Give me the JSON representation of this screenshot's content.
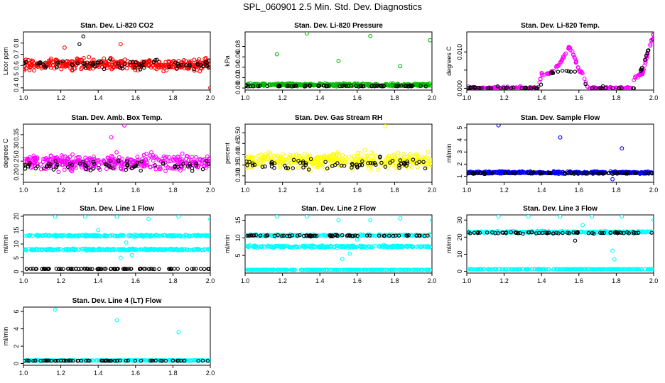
{
  "title": "SPL_060901  2.5 Min. Std. Dev. Diagnostics",
  "colors": {
    "black": "#000000",
    "red": "#ff0000",
    "green": "#00bb00",
    "magenta": "#ff00ff",
    "yellow": "#ffff00",
    "blue": "#0000ff",
    "cyan": "#00ffff"
  },
  "chart_data": [
    {
      "type": "scatter",
      "title": "Stan. Dev. Li-820 CO2",
      "ylabel": "Licor ppm",
      "xlim": [
        1.0,
        2.0
      ],
      "ylim": [
        0.38,
        0.9
      ],
      "xticks": [
        1.0,
        1.2,
        1.4,
        1.6,
        1.8,
        2.0
      ],
      "xtick_labels": [
        "1.0",
        "1.2",
        "1.4",
        "1.6",
        "1.8",
        "2.0"
      ],
      "yticks": [
        0.4,
        0.5,
        0.6,
        0.7,
        0.8
      ],
      "ytick_labels": [
        "0.4",
        "0.5",
        "0.6",
        "0.7",
        "0.8"
      ],
      "series": [
        {
          "color": "red",
          "kind": "band",
          "center": 0.61,
          "spread": 0.08,
          "n": 380,
          "outliers": [
            [
              1.52,
              0.79
            ],
            [
              2.0,
              0.4
            ],
            [
              1.22,
              0.76
            ]
          ]
        },
        {
          "color": "black",
          "kind": "band",
          "center": 0.61,
          "spread": 0.07,
          "n": 70,
          "outliers": [
            [
              1.32,
              0.86
            ],
            [
              1.3,
              0.79
            ]
          ]
        }
      ]
    },
    {
      "type": "scatter",
      "title": "Stan. Dev. Li-820 Pressure",
      "ylabel": "kPa",
      "xlim": [
        1.0,
        2.0
      ],
      "ylim": [
        -0.004,
        0.108
      ],
      "xticks": [
        1.0,
        1.2,
        1.4,
        1.6,
        1.8,
        2.0
      ],
      "xtick_labels": [
        "1.0",
        "1.2",
        "1.4",
        "1.6",
        "1.8",
        "2.0"
      ],
      "yticks": [
        0.0,
        0.02,
        0.04,
        0.06,
        0.08
      ],
      "ytick_labels": [
        "0.00",
        "0.02",
        "0.04",
        "0.06",
        "0.08"
      ],
      "series": [
        {
          "color": "green",
          "kind": "band",
          "center": 0.006,
          "spread": 0.004,
          "n": 380,
          "outliers": [
            [
              1.17,
              0.065
            ],
            [
              1.33,
              0.105
            ],
            [
              1.5,
              0.052
            ],
            [
              1.67,
              0.1
            ],
            [
              1.83,
              0.042
            ],
            [
              1.99,
              0.092
            ]
          ]
        },
        {
          "color": "black",
          "kind": "band",
          "center": 0.004,
          "spread": 0.002,
          "n": 70,
          "outliers": []
        }
      ]
    },
    {
      "type": "scatter",
      "title": "Stan. Dev. Li-820 Temp.",
      "ylabel": "degrees C",
      "xlim": [
        1.0,
        2.0
      ],
      "ylim": [
        -0.0005,
        0.0155
      ],
      "xticks": [
        1.0,
        1.2,
        1.4,
        1.6,
        1.8,
        2.0
      ],
      "xtick_labels": [
        "1.0",
        "1.2",
        "1.4",
        "1.6",
        "1.8",
        "2.0"
      ],
      "yticks": [
        0.0,
        0.005,
        0.01
      ],
      "ytick_labels": [
        "0.000",
        "",
        "0.010"
      ],
      "series": [
        {
          "color": "magenta",
          "kind": "curve",
          "points": [
            [
              1.0,
              0
            ],
            [
              1.38,
              0
            ],
            [
              1.4,
              0.004
            ],
            [
              1.45,
              0.004
            ],
            [
              1.5,
              0.007
            ],
            [
              1.55,
              0.0115
            ],
            [
              1.58,
              0.008
            ],
            [
              1.6,
              0.005
            ],
            [
              1.62,
              0.004
            ],
            [
              1.65,
              0
            ],
            [
              1.88,
              0
            ],
            [
              1.9,
              0.003
            ],
            [
              1.94,
              0.004
            ],
            [
              1.97,
              0.01
            ],
            [
              2.0,
              0.015
            ]
          ],
          "n": 300,
          "outliers": []
        },
        {
          "color": "black",
          "kind": "curve",
          "points": [
            [
              1.0,
              0
            ],
            [
              1.38,
              0
            ],
            [
              1.45,
              0.004
            ],
            [
              1.52,
              0.005
            ],
            [
              1.6,
              0.004
            ],
            [
              1.65,
              0
            ],
            [
              1.9,
              0
            ],
            [
              1.96,
              0.009
            ],
            [
              2.0,
              0.014
            ]
          ],
          "n": 70,
          "outliers": []
        }
      ]
    },
    {
      "type": "scatter",
      "title": "Stan. Dev. Amb. Box Temp.",
      "ylabel": "degrees C",
      "xlim": [
        1.0,
        2.0
      ],
      "ylim": [
        0.17,
        0.39
      ],
      "xticks": [
        1.0,
        1.2,
        1.4,
        1.6,
        1.8,
        2.0
      ],
      "xtick_labels": [
        "1.0",
        "1.2",
        "1.4",
        "1.6",
        "1.8",
        "2.0"
      ],
      "yticks": [
        0.2,
        0.25,
        0.3,
        0.35
      ],
      "ytick_labels": [
        "0.20",
        "0.25",
        "0.30",
        "0.35"
      ],
      "series": [
        {
          "color": "magenta",
          "kind": "band",
          "center": 0.245,
          "spread": 0.045,
          "n": 380,
          "outliers": [
            [
              1.54,
              0.385
            ],
            [
              1.47,
              0.34
            ]
          ]
        },
        {
          "color": "black",
          "kind": "band",
          "center": 0.235,
          "spread": 0.03,
          "n": 70,
          "outliers": []
        }
      ]
    },
    {
      "type": "scatter",
      "title": "Stan. Dev. Gas Stream RH",
      "ylabel": "percent",
      "xlim": [
        1.0,
        2.0
      ],
      "ylim": [
        0.27,
        0.54
      ],
      "xticks": [
        1.0,
        1.2,
        1.4,
        1.6,
        1.8,
        2.0
      ],
      "xtick_labels": [
        "1.0",
        "1.2",
        "1.4",
        "1.6",
        "1.8",
        "2.0"
      ],
      "yticks": [
        0.3,
        0.35,
        0.4,
        0.45,
        0.5
      ],
      "ytick_labels": [
        "0.30",
        "0.35",
        "0.40",
        "0.45",
        "0.50"
      ],
      "series": [
        {
          "color": "yellow",
          "kind": "band",
          "center": 0.37,
          "spread": 0.06,
          "n": 380,
          "outliers": [
            [
              1.75,
              0.53
            ]
          ]
        },
        {
          "color": "black",
          "kind": "band",
          "center": 0.355,
          "spread": 0.04,
          "n": 70,
          "outliers": []
        }
      ]
    },
    {
      "type": "scatter",
      "title": "Stan. Dev. Sample Flow",
      "ylabel": "ml/min",
      "xlim": [
        1.0,
        2.0
      ],
      "ylim": [
        0.5,
        5.3
      ],
      "xticks": [
        1.0,
        1.2,
        1.4,
        1.6,
        1.8,
        2.0
      ],
      "xtick_labels": [
        "1.0",
        "1.2",
        "1.4",
        "1.6",
        "1.8",
        "2.0"
      ],
      "yticks": [
        1,
        2,
        3,
        4,
        5
      ],
      "ytick_labels": [
        "1",
        "2",
        "3",
        "4",
        "5"
      ],
      "series": [
        {
          "color": "blue",
          "kind": "band",
          "center": 1.3,
          "spread": 0.15,
          "n": 380,
          "outliers": [
            [
              1.17,
              5.2
            ],
            [
              1.5,
              4.2
            ],
            [
              1.83,
              3.3
            ],
            [
              1.78,
              0.75
            ]
          ]
        },
        {
          "color": "black",
          "kind": "band",
          "center": 1.25,
          "spread": 0.1,
          "n": 70,
          "outliers": []
        }
      ]
    },
    {
      "type": "scatter",
      "title": "Stan. Dev. Line 1 Flow",
      "ylabel": "ml/min",
      "xlim": [
        1.0,
        2.0
      ],
      "ylim": [
        -0.5,
        20.5
      ],
      "xticks": [
        1.0,
        1.2,
        1.4,
        1.6,
        1.8,
        2.0
      ],
      "xtick_labels": [
        "1.0",
        "1.2",
        "1.4",
        "1.6",
        "1.8",
        "2.0"
      ],
      "yticks": [
        0,
        5,
        10,
        15,
        20
      ],
      "ytick_labels": [
        "0",
        "5",
        "10",
        "15",
        "20"
      ],
      "series": [
        {
          "color": "cyan",
          "kind": "band",
          "center": 13.0,
          "spread": 0.5,
          "n": 250,
          "outliers": [
            [
              1.17,
              19.8
            ],
            [
              1.33,
              19.8
            ],
            [
              1.5,
              19.8
            ],
            [
              1.67,
              19.0
            ],
            [
              1.83,
              19.8
            ],
            [
              2.0,
              19.0
            ],
            [
              1.4,
              15.0
            ]
          ]
        },
        {
          "color": "cyan",
          "kind": "band",
          "center": 8.0,
          "spread": 0.5,
          "n": 250,
          "outliers": [
            [
              1.52,
              5.0
            ],
            [
              1.58,
              6.0
            ],
            [
              1.55,
              10.5
            ]
          ]
        },
        {
          "color": "black",
          "kind": "band",
          "center": 1.0,
          "spread": 0.15,
          "n": 90,
          "outliers": []
        }
      ]
    },
    {
      "type": "scatter",
      "title": "Stan. Dev. Line 2 Flow",
      "ylabel": "ml/min",
      "xlim": [
        1.0,
        2.0
      ],
      "ylim": [
        0.0,
        16.5
      ],
      "xticks": [
        1.0,
        1.2,
        1.4,
        1.6,
        1.8,
        2.0
      ],
      "xtick_labels": [
        "1.0",
        "1.2",
        "1.4",
        "1.6",
        "1.8",
        "2.0"
      ],
      "yticks": [
        5,
        10,
        15
      ],
      "ytick_labels": [
        "5",
        "10",
        "15"
      ],
      "series": [
        {
          "color": "cyan",
          "kind": "band",
          "center": 10.7,
          "spread": 0.4,
          "n": 250,
          "outliers": [
            [
              1.17,
              16
            ],
            [
              1.33,
              16
            ],
            [
              1.5,
              15
            ],
            [
              1.67,
              15
            ],
            [
              1.83,
              15.5
            ],
            [
              2.0,
              15
            ]
          ]
        },
        {
          "color": "cyan",
          "kind": "band",
          "center": 7.5,
          "spread": 0.5,
          "n": 250,
          "outliers": [
            [
              1.52,
              4.0
            ],
            [
              1.56,
              5.5
            ],
            [
              1.6,
              9.5
            ]
          ]
        },
        {
          "color": "cyan",
          "kind": "band",
          "center": 0.9,
          "spread": 0.1,
          "n": 250,
          "outliers": []
        },
        {
          "color": "black",
          "kind": "band",
          "center": 10.6,
          "spread": 0.3,
          "n": 70,
          "outliers": []
        }
      ]
    },
    {
      "type": "scatter",
      "title": "Stan. Dev. Line 3 Flow",
      "ylabel": "ml/min",
      "xlim": [
        1.0,
        2.0
      ],
      "ylim": [
        -1,
        33
      ],
      "xticks": [
        1.0,
        1.2,
        1.4,
        1.6,
        1.8,
        2.0
      ],
      "xtick_labels": [
        "1.0",
        "1.2",
        "1.4",
        "1.6",
        "1.8",
        "2.0"
      ],
      "yticks": [
        0,
        10,
        20,
        30
      ],
      "ytick_labels": [
        "0",
        "10",
        "20",
        "30"
      ],
      "series": [
        {
          "color": "cyan",
          "kind": "band",
          "center": 23.0,
          "spread": 0.8,
          "n": 300,
          "outliers": [
            [
              1.17,
              32
            ],
            [
              1.33,
              32
            ],
            [
              1.5,
              32
            ],
            [
              1.67,
              32
            ],
            [
              1.83,
              32
            ],
            [
              2.0,
              30
            ],
            [
              1.78,
              12
            ],
            [
              1.79,
              7
            ],
            [
              1.62,
              27
            ]
          ]
        },
        {
          "color": "cyan",
          "kind": "band",
          "center": 1.2,
          "spread": 0.15,
          "n": 250,
          "outliers": []
        },
        {
          "color": "black",
          "kind": "band",
          "center": 22.5,
          "spread": 0.8,
          "n": 70,
          "outliers": [
            [
              1.58,
              18
            ]
          ]
        }
      ]
    },
    {
      "type": "scatter",
      "title": "Stan. Dev. Line 4 (LT) Flow",
      "ylabel": "ml/min",
      "xlim": [
        1.0,
        2.0
      ],
      "ylim": [
        -0.2,
        6.5
      ],
      "xticks": [
        1.0,
        1.2,
        1.4,
        1.6,
        1.8,
        2.0
      ],
      "xtick_labels": [
        "1.0",
        "1.2",
        "1.4",
        "1.6",
        "1.8",
        "2.0"
      ],
      "yticks": [
        0,
        2,
        4,
        6
      ],
      "ytick_labels": [
        "0",
        "2",
        "4",
        "6"
      ],
      "series": [
        {
          "color": "cyan",
          "kind": "band",
          "center": 0.35,
          "spread": 0.06,
          "n": 300,
          "outliers": [
            [
              1.17,
              6.2
            ],
            [
              1.5,
              5.0
            ],
            [
              1.83,
              3.6
            ]
          ]
        },
        {
          "color": "black",
          "kind": "band",
          "center": 0.33,
          "spread": 0.04,
          "n": 70,
          "outliers": []
        }
      ]
    }
  ]
}
